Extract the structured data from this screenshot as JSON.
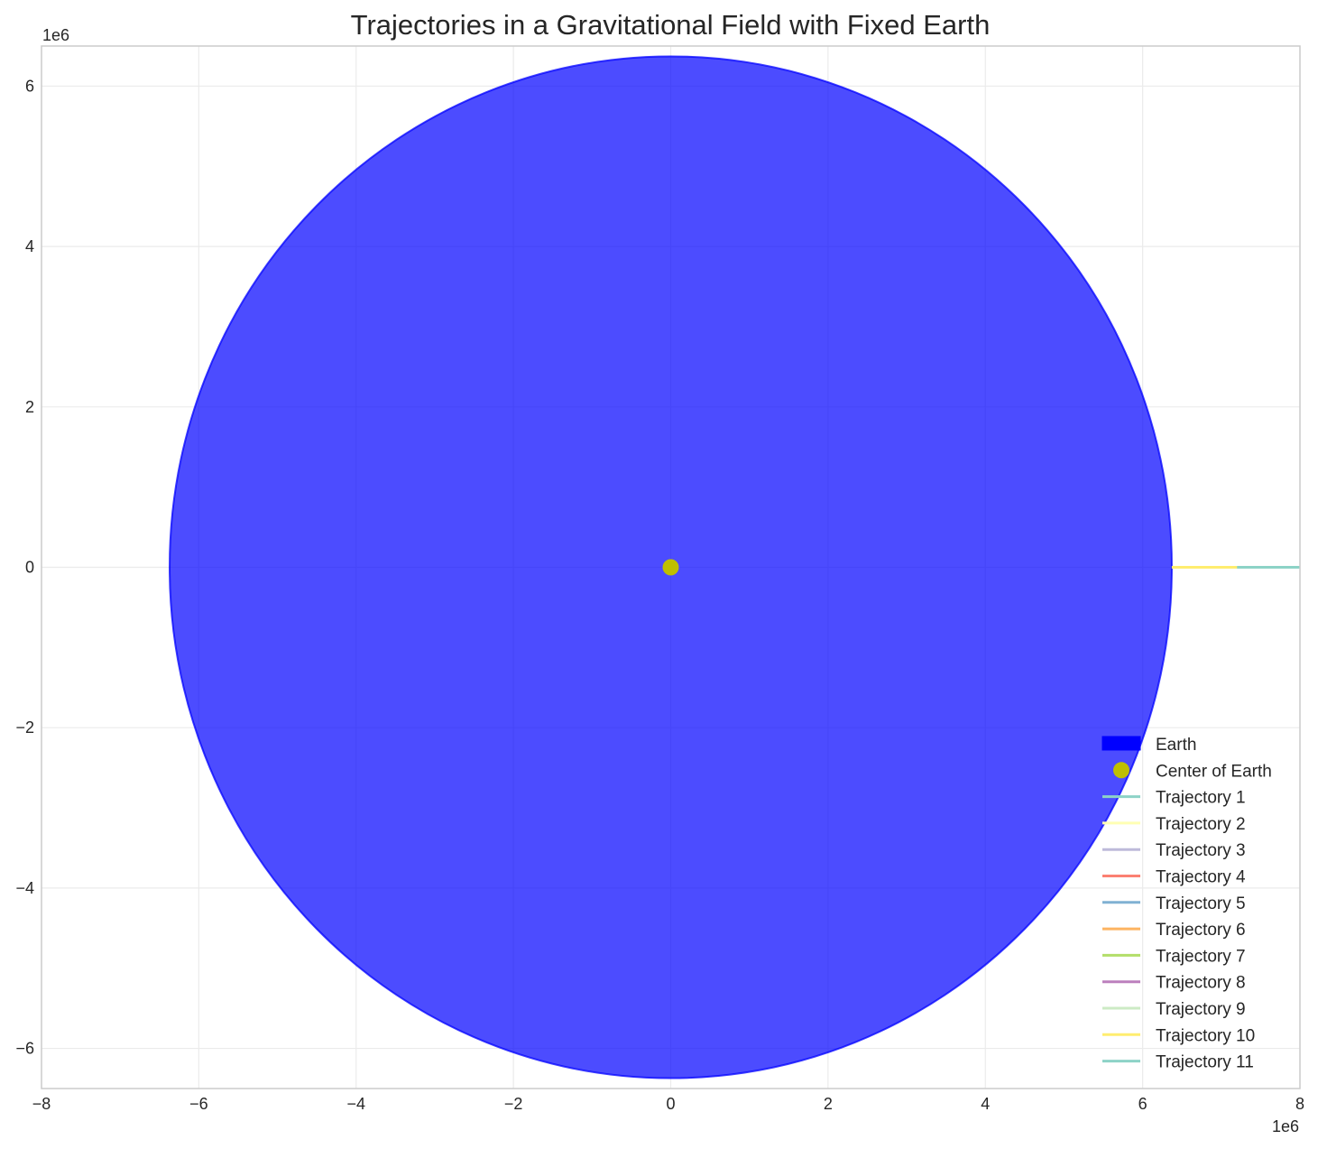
{
  "chart_data": {
    "type": "line",
    "title": "Trajectories in a Gravitational Field with Fixed Earth",
    "xlabel": "",
    "ylabel": "",
    "x_offset_label": "1e6",
    "y_offset_label": "1e6",
    "xlim": [
      -8000000,
      8000000
    ],
    "ylim": [
      -6500000,
      6500000
    ],
    "xticks": [
      -8000000,
      -6000000,
      -4000000,
      -2000000,
      0,
      2000000,
      4000000,
      6000000,
      8000000
    ],
    "yticks": [
      -6000000,
      -4000000,
      -2000000,
      0,
      2000000,
      4000000,
      6000000
    ],
    "xtick_labels": [
      "−8",
      "−6",
      "−4",
      "−2",
      "0",
      "2",
      "4",
      "6",
      "8"
    ],
    "ytick_labels": [
      "−6",
      "−4",
      "−2",
      "0",
      "2",
      "4",
      "6"
    ],
    "grid": true,
    "legend_position": "lower-right",
    "earth": {
      "label": "Earth",
      "center": [
        0,
        0
      ],
      "radius": 6371000,
      "color": "#0000ff",
      "alpha": 0.7
    },
    "center_marker": {
      "label": "Center of Earth",
      "x": 0,
      "y": 0,
      "color": "#bfbf00"
    },
    "series": [
      {
        "name": "Trajectory 1",
        "color": "#8dd3c7",
        "x": [
          6371000,
          8000000
        ],
        "y": [
          0,
          0
        ]
      },
      {
        "name": "Trajectory 2",
        "color": "#ffffb3",
        "x": [
          6371000,
          8000000
        ],
        "y": [
          0,
          0
        ]
      },
      {
        "name": "Trajectory 3",
        "color": "#bebada",
        "x": [
          6371000,
          8000000
        ],
        "y": [
          0,
          0
        ]
      },
      {
        "name": "Trajectory 4",
        "color": "#fb8072",
        "x": [
          6371000,
          8000000
        ],
        "y": [
          0,
          0
        ]
      },
      {
        "name": "Trajectory 5",
        "color": "#80b1d3",
        "x": [
          6371000,
          8000000
        ],
        "y": [
          0,
          0
        ]
      },
      {
        "name": "Trajectory 6",
        "color": "#fdb462",
        "x": [
          6371000,
          8000000
        ],
        "y": [
          0,
          0
        ]
      },
      {
        "name": "Trajectory 7",
        "color": "#b3de69",
        "x": [
          6371000,
          8000000
        ],
        "y": [
          0,
          0
        ]
      },
      {
        "name": "Trajectory 8",
        "color": "#bc80bd",
        "x": [
          6371000,
          8000000
        ],
        "y": [
          0,
          0
        ]
      },
      {
        "name": "Trajectory 9",
        "color": "#ccebc5",
        "x": [
          6371000,
          8000000
        ],
        "y": [
          0,
          0
        ]
      },
      {
        "name": "Trajectory 10",
        "color": "#ffed6f",
        "x": [
          6371000,
          8000000
        ],
        "y": [
          0,
          0
        ]
      },
      {
        "name": "Trajectory 11",
        "color": "#8dd3c7",
        "x": [
          7200000,
          8000000
        ],
        "y": [
          0,
          0
        ]
      }
    ]
  }
}
